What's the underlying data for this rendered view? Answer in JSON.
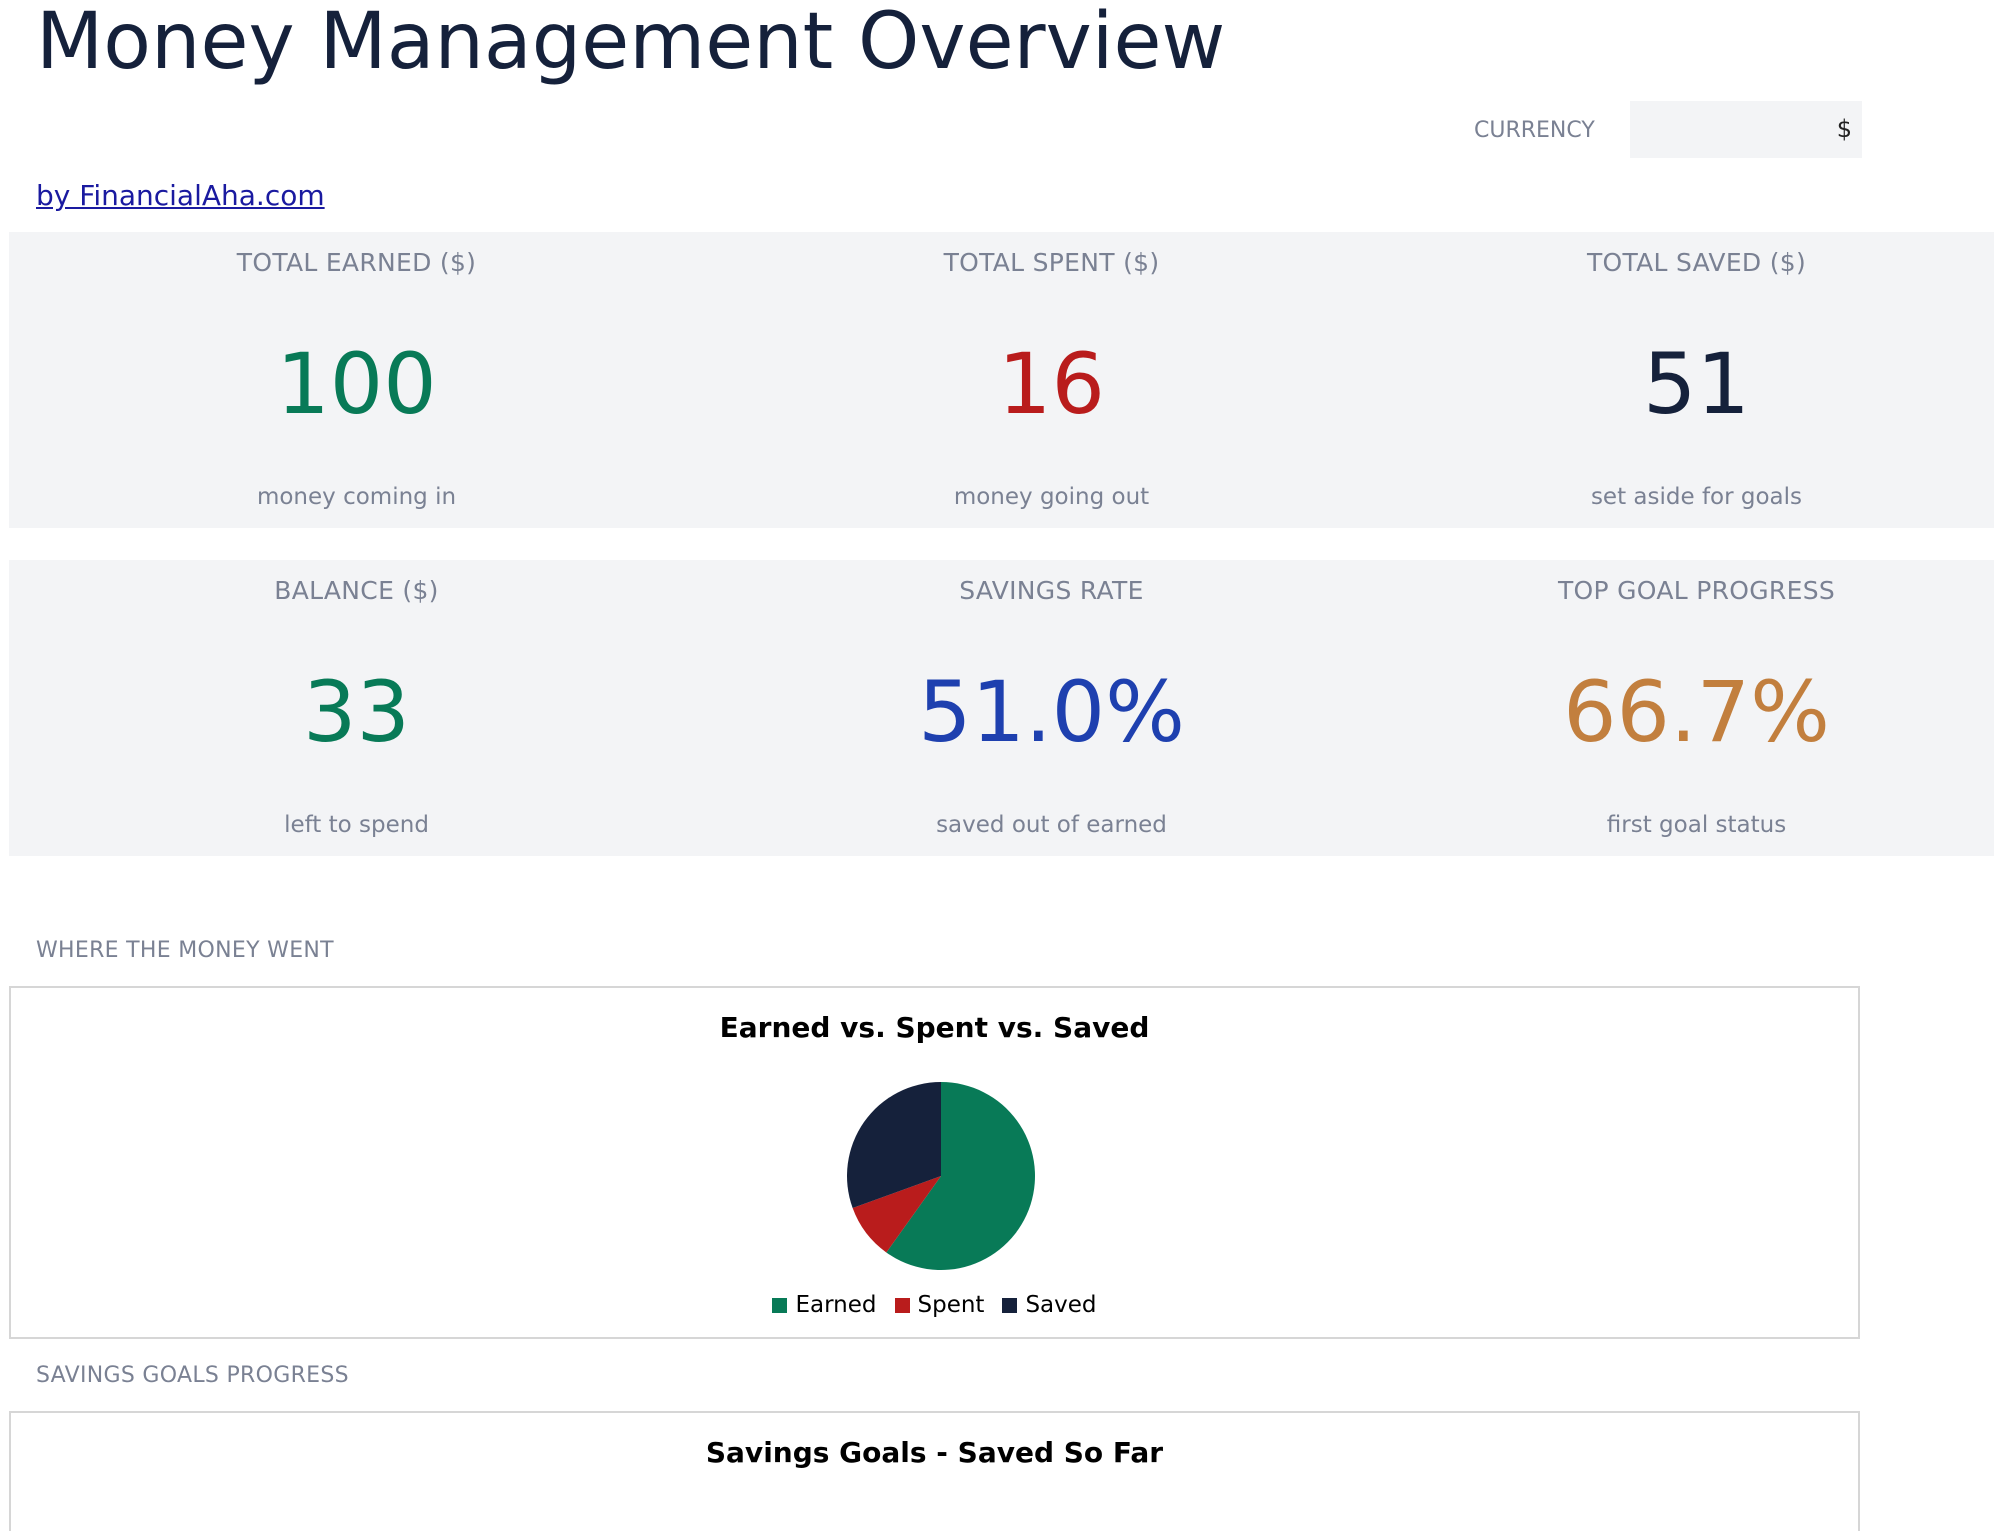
{
  "header": {
    "title": "Money Management Overview",
    "currency_label": "CURRENCY",
    "currency_value": "$",
    "byline": "by FinancialAha.com"
  },
  "kpis": [
    {
      "label": "TOTAL EARNED ($)",
      "value": "100",
      "sub": "money coming in",
      "color": "#087a57"
    },
    {
      "label": "TOTAL SPENT ($)",
      "value": "16",
      "sub": "money going out",
      "color": "#b91c1c"
    },
    {
      "label": "TOTAL SAVED ($)",
      "value": "51",
      "sub": "set aside for goals",
      "color": "#15213b"
    },
    {
      "label": "BALANCE ($)",
      "value": "33",
      "sub": "left to spend",
      "color": "#087a57"
    },
    {
      "label": "SAVINGS RATE",
      "value": "51.0%",
      "sub": "saved out of earned",
      "color": "#1e40af"
    },
    {
      "label": "TOP GOAL PROGRESS",
      "value": "66.7%",
      "sub": "first goal status",
      "color": "#c27f3e"
    }
  ],
  "sections": {
    "money_went": "WHERE THE MONEY WENT",
    "goals_progress": "SAVINGS GOALS PROGRESS"
  },
  "chart_data": [
    {
      "type": "pie",
      "title": "Earned vs. Spent vs. Saved",
      "categories": [
        "Earned",
        "Spent",
        "Saved"
      ],
      "values": [
        100,
        16,
        51
      ],
      "colors": [
        "#087a57",
        "#b91c1c",
        "#15213b"
      ],
      "legend": "bottom"
    },
    {
      "type": "bar",
      "title": "Savings Goals - Saved So Far"
    }
  ]
}
